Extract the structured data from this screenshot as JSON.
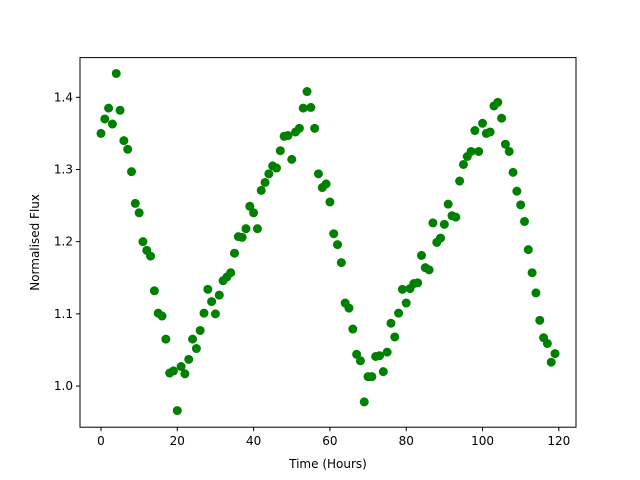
{
  "chart_data": {
    "type": "scatter",
    "title": "",
    "xlabel": "Time (Hours)",
    "ylabel": "Normalised Flux",
    "xlim": [
      -5.5,
      124.5
    ],
    "ylim": [
      0.943,
      1.455
    ],
    "xticks": [
      0,
      20,
      40,
      60,
      80,
      100,
      120
    ],
    "yticks": [
      1.0,
      1.1,
      1.2,
      1.3,
      1.4
    ],
    "xtick_labels": [
      "0",
      "20",
      "40",
      "60",
      "80",
      "100",
      "120"
    ],
    "ytick_labels": [
      "1.0",
      "1.1",
      "1.2",
      "1.3",
      "1.4"
    ],
    "grid": false,
    "marker_color": "#008000",
    "series": [
      {
        "x": [
          0,
          1,
          2,
          3,
          4,
          5,
          6,
          7,
          8,
          9,
          10,
          11,
          12,
          13,
          14,
          15,
          16,
          17,
          18,
          19,
          20,
          21,
          22,
          23,
          24,
          25,
          26,
          27,
          28,
          29,
          30,
          31,
          32,
          33,
          34,
          35,
          36,
          37,
          38,
          39,
          40,
          41,
          42,
          43,
          44,
          45,
          46,
          47,
          48,
          49,
          50,
          51,
          52,
          53,
          54,
          55,
          56,
          57,
          58,
          59,
          60,
          61,
          62,
          63,
          64,
          65,
          66,
          67,
          68,
          69,
          70,
          71,
          72,
          73,
          74,
          75,
          76,
          77,
          78,
          79,
          80,
          81,
          82,
          83,
          84,
          85,
          86,
          87,
          88,
          89,
          90,
          91,
          92,
          93,
          94,
          95,
          96,
          97,
          98,
          99,
          100,
          101,
          102,
          103,
          104,
          105,
          106,
          107,
          108,
          109,
          110,
          111,
          112,
          113,
          114,
          115,
          116,
          117,
          118,
          119
        ],
        "y": [
          1.35,
          1.37,
          1.385,
          1.363,
          1.433,
          1.382,
          1.34,
          1.328,
          1.297,
          1.253,
          1.24,
          1.2,
          1.188,
          1.18,
          1.132,
          1.101,
          1.097,
          1.065,
          1.018,
          1.021,
          0.966,
          1.027,
          1.017,
          1.037,
          1.065,
          1.052,
          1.077,
          1.101,
          1.134,
          1.117,
          1.1,
          1.126,
          1.146,
          1.151,
          1.157,
          1.184,
          1.207,
          1.206,
          1.218,
          1.249,
          1.24,
          1.218,
          1.271,
          1.282,
          1.294,
          1.305,
          1.302,
          1.326,
          1.346,
          1.347,
          1.314,
          1.352,
          1.357,
          1.385,
          1.408,
          1.386,
          1.357,
          1.294,
          1.275,
          1.28,
          1.255,
          1.211,
          1.196,
          1.171,
          1.115,
          1.108,
          1.079,
          1.044,
          1.035,
          0.978,
          1.013,
          1.013,
          1.041,
          1.042,
          1.02,
          1.047,
          1.087,
          1.068,
          1.101,
          1.134,
          1.115,
          1.135,
          1.142,
          1.143,
          1.181,
          1.164,
          1.161,
          1.226,
          1.199,
          1.205,
          1.224,
          1.252,
          1.236,
          1.234,
          1.284,
          1.307,
          1.318,
          1.325,
          1.354,
          1.325,
          1.364,
          1.35,
          1.352,
          1.388,
          1.393,
          1.371,
          1.335,
          1.325,
          1.296,
          1.27,
          1.251,
          1.228,
          1.189,
          1.157,
          1.129,
          1.091,
          1.067,
          1.059,
          1.033,
          1.045
        ]
      }
    ]
  }
}
